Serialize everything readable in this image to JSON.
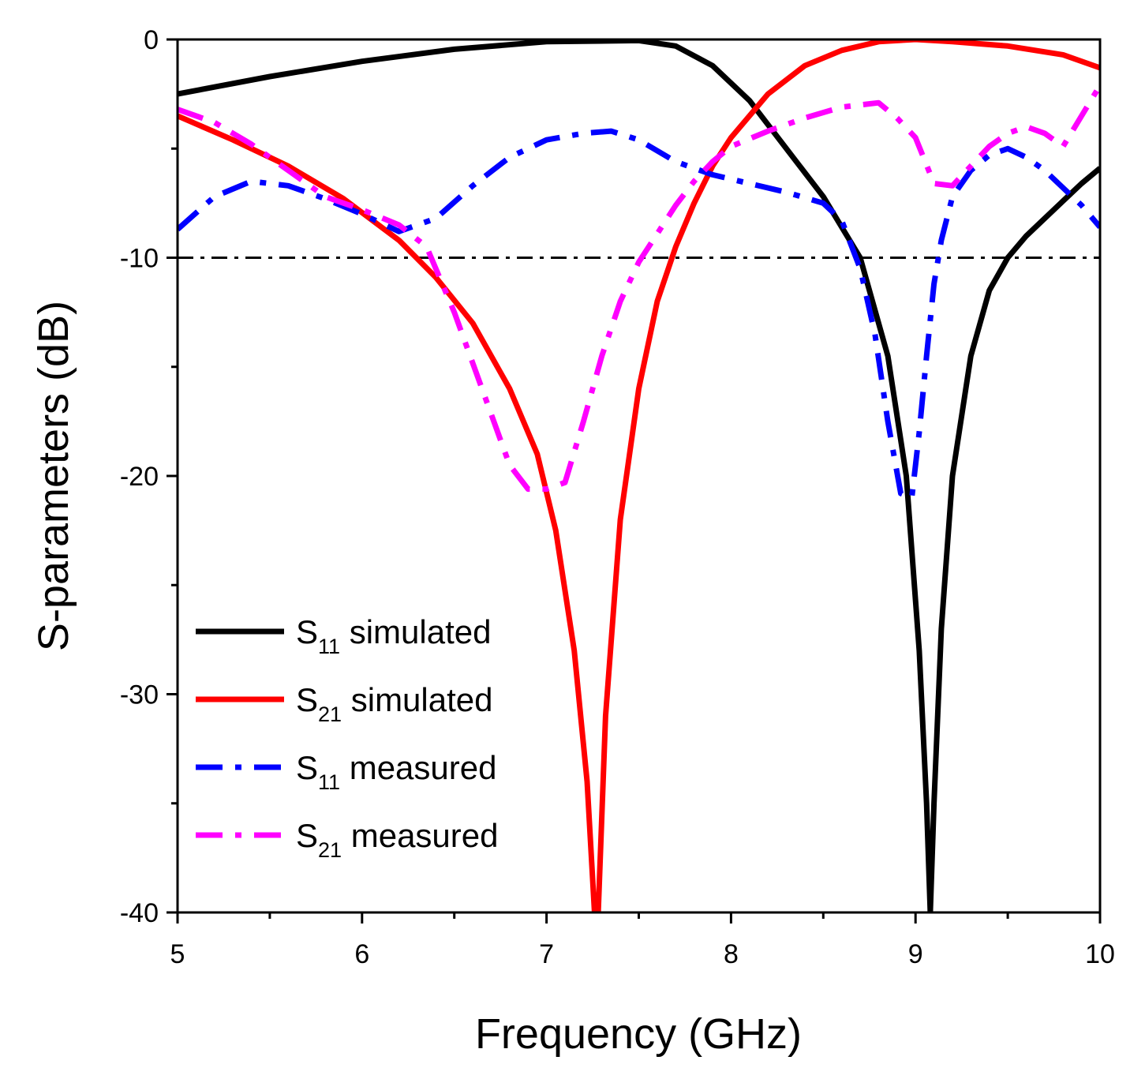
{
  "chart_data": {
    "type": "line",
    "title": "",
    "xlabel": "Frequency (GHz)",
    "ylabel": "S-parameters (dB)",
    "xlim": [
      5,
      10
    ],
    "ylim": [
      -40,
      0
    ],
    "x_ticks": [
      5,
      6,
      7,
      8,
      9,
      10
    ],
    "x_tick_labels": [
      "5",
      "6",
      "7",
      "8",
      "9",
      "10"
    ],
    "y_ticks": [
      0,
      -10,
      -20,
      -30,
      -40
    ],
    "y_tick_labels": [
      "0",
      "-10",
      "-20",
      "-30",
      "-40"
    ],
    "legend_position": "bottom-left",
    "reference_line": {
      "y": -10,
      "color": "#000000",
      "style": "dash-dot"
    },
    "series": [
      {
        "name": "S11 simulated",
        "legend_main": "S",
        "legend_sub": "11",
        "legend_suffix": " simulated",
        "color": "#000000",
        "style": "solid",
        "x": [
          5.0,
          5.5,
          6.0,
          6.5,
          7.0,
          7.5,
          7.7,
          7.9,
          8.1,
          8.3,
          8.5,
          8.7,
          8.85,
          8.95,
          9.02,
          9.06,
          9.08,
          9.1,
          9.14,
          9.2,
          9.3,
          9.4,
          9.5,
          9.6,
          9.7,
          9.8,
          9.9,
          10.0
        ],
        "values": [
          -2.5,
          -1.7,
          -1.0,
          -0.45,
          -0.1,
          -0.05,
          -0.3,
          -1.2,
          -2.8,
          -5.0,
          -7.2,
          -10.0,
          -14.5,
          -20.0,
          -28.0,
          -35.0,
          -40.0,
          -35.0,
          -27.0,
          -20.0,
          -14.5,
          -11.5,
          -10.0,
          -9.0,
          -8.2,
          -7.4,
          -6.6,
          -5.9
        ]
      },
      {
        "name": "S21 simulated",
        "legend_main": "S",
        "legend_sub": "21",
        "legend_suffix": " simulated",
        "color": "#ff0000",
        "style": "solid",
        "x": [
          5.0,
          5.3,
          5.6,
          5.9,
          6.2,
          6.4,
          6.6,
          6.8,
          6.95,
          7.05,
          7.15,
          7.22,
          7.26,
          7.28,
          7.32,
          7.4,
          7.5,
          7.6,
          7.7,
          7.8,
          7.9,
          8.0,
          8.2,
          8.4,
          8.6,
          8.8,
          9.0,
          9.2,
          9.5,
          9.8,
          10.0
        ],
        "values": [
          -3.5,
          -4.6,
          -5.8,
          -7.3,
          -9.2,
          -10.9,
          -13.0,
          -16.0,
          -19.0,
          -22.5,
          -28.0,
          -34.0,
          -40.0,
          -40.0,
          -31.0,
          -22.0,
          -16.0,
          -12.0,
          -9.5,
          -7.5,
          -5.8,
          -4.5,
          -2.5,
          -1.2,
          -0.5,
          -0.1,
          0.0,
          -0.1,
          -0.3,
          -0.7,
          -1.3
        ]
      },
      {
        "name": "S11 measured",
        "legend_main": "S",
        "legend_sub": "11",
        "legend_suffix": " measured",
        "color": "#0000ff",
        "style": "dash-dot",
        "x": [
          5.0,
          5.2,
          5.4,
          5.6,
          5.8,
          6.0,
          6.2,
          6.4,
          6.6,
          6.8,
          7.0,
          7.2,
          7.35,
          7.5,
          7.7,
          7.9,
          8.1,
          8.3,
          8.5,
          8.6,
          8.7,
          8.78,
          8.85,
          8.92,
          8.98,
          9.02,
          9.06,
          9.1,
          9.14,
          9.2,
          9.3,
          9.4,
          9.5,
          9.6,
          9.7,
          9.8,
          9.9,
          10.0
        ],
        "values": [
          -8.7,
          -7.2,
          -6.5,
          -6.7,
          -7.3,
          -8.0,
          -8.8,
          -8.2,
          -6.7,
          -5.4,
          -4.6,
          -4.3,
          -4.2,
          -4.6,
          -5.6,
          -6.2,
          -6.6,
          -7.0,
          -7.5,
          -8.3,
          -10.5,
          -13.5,
          -17.5,
          -20.8,
          -21.0,
          -18.0,
          -14.5,
          -11.2,
          -9.2,
          -7.2,
          -6.0,
          -5.3,
          -5.0,
          -5.4,
          -6.0,
          -6.8,
          -7.6,
          -8.6
        ]
      },
      {
        "name": "S21 measured",
        "legend_main": "S",
        "legend_sub": "21",
        "legend_suffix": " measured",
        "color": "#ff00ff",
        "style": "dash-dot",
        "x": [
          5.0,
          5.2,
          5.4,
          5.6,
          5.8,
          6.0,
          6.2,
          6.35,
          6.5,
          6.65,
          6.8,
          6.9,
          7.0,
          7.1,
          7.2,
          7.3,
          7.4,
          7.5,
          7.6,
          7.7,
          7.8,
          7.9,
          8.0,
          8.2,
          8.4,
          8.6,
          8.8,
          8.9,
          9.0,
          9.1,
          9.2,
          9.3,
          9.4,
          9.5,
          9.6,
          9.7,
          9.8,
          9.9,
          10.0
        ],
        "values": [
          -3.2,
          -3.8,
          -4.8,
          -6.0,
          -7.2,
          -7.8,
          -8.5,
          -9.5,
          -12.5,
          -16.0,
          -19.5,
          -20.6,
          -20.6,
          -20.3,
          -17.5,
          -14.5,
          -12.0,
          -10.2,
          -8.9,
          -7.6,
          -6.5,
          -5.6,
          -4.9,
          -4.2,
          -3.6,
          -3.1,
          -2.9,
          -3.6,
          -4.5,
          -6.6,
          -6.7,
          -5.8,
          -4.9,
          -4.3,
          -4.0,
          -4.3,
          -4.9,
          -3.5,
          -2.1
        ]
      }
    ]
  }
}
